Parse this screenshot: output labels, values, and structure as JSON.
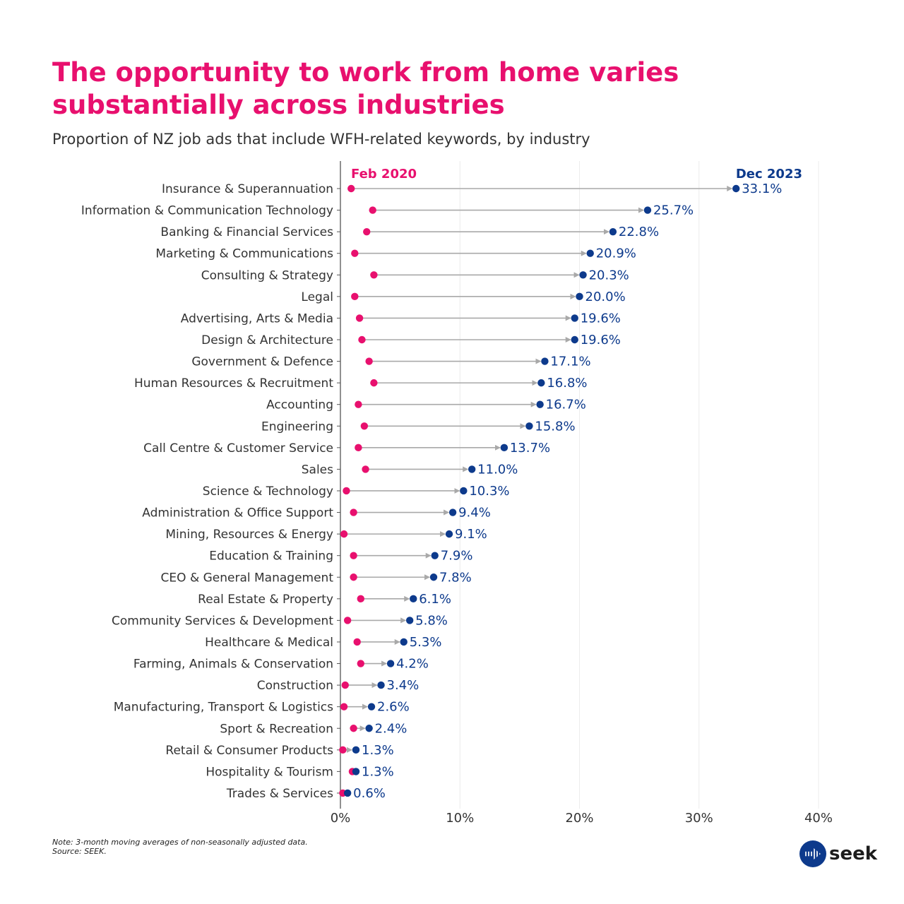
{
  "title": "The opportunity to work from home varies substantially across industries",
  "subtitle": "Proportion of NZ job ads that include WFH-related keywords, by industry",
  "note": "Note: 3-month moving averages of non-seasonally adjusted data.",
  "source": "Source: SEEK.",
  "logo": "seek",
  "colors": {
    "title": "#e8106e",
    "feb2020": "#e8106e",
    "dec2023": "#0d3a8c",
    "arrow": "#a9a9a9",
    "grid": "#ececec"
  },
  "chart_data": {
    "type": "dumbbell",
    "xlim": [
      0,
      40
    ],
    "x_ticks": [
      "0%",
      "10%",
      "20%",
      "30%",
      "40%"
    ],
    "grid": true,
    "series_labels": {
      "start": "Feb 2020",
      "end": "Dec 2023"
    },
    "categories": [
      "Insurance & Superannuation",
      "Information & Communication Technology",
      "Banking & Financial Services",
      "Marketing & Communications",
      "Consulting & Strategy",
      "Legal",
      "Advertising, Arts & Media",
      "Design & Architecture",
      "Government & Defence",
      "Human Resources & Recruitment",
      "Accounting",
      "Engineering",
      "Call Centre & Customer Service",
      "Sales",
      "Science & Technology",
      "Administration & Office Support",
      "Mining, Resources & Energy",
      "Education & Training",
      "CEO & General Management",
      "Real Estate & Property",
      "Community Services & Development",
      "Healthcare & Medical",
      "Farming, Animals & Conservation",
      "Construction",
      "Manufacturing, Transport & Logistics",
      "Sport & Recreation",
      "Retail & Consumer Products",
      "Hospitality & Tourism",
      "Trades & Services"
    ],
    "feb2020": [
      0.9,
      2.7,
      2.2,
      1.2,
      2.8,
      1.2,
      1.6,
      1.8,
      2.4,
      2.8,
      1.5,
      2.0,
      1.5,
      2.1,
      0.5,
      1.1,
      0.3,
      1.1,
      1.1,
      1.7,
      0.6,
      1.4,
      1.7,
      0.4,
      0.3,
      1.1,
      0.2,
      1.0,
      0.2
    ],
    "dec2023": [
      33.1,
      25.7,
      22.8,
      20.9,
      20.3,
      20.0,
      19.6,
      19.6,
      17.1,
      16.8,
      16.7,
      15.8,
      13.7,
      11.0,
      10.3,
      9.4,
      9.1,
      7.9,
      7.8,
      6.1,
      5.8,
      5.3,
      4.2,
      3.4,
      2.6,
      2.4,
      1.3,
      1.3,
      0.6
    ],
    "dec2023_labels": [
      "33.1%",
      "25.7%",
      "22.8%",
      "20.9%",
      "20.3%",
      "20.0%",
      "19.6%",
      "19.6%",
      "17.1%",
      "16.8%",
      "16.7%",
      "15.8%",
      "13.7%",
      "11.0%",
      "10.3%",
      "9.4%",
      "9.1%",
      "7.9%",
      "7.8%",
      "6.1%",
      "5.8%",
      "5.3%",
      "4.2%",
      "3.4%",
      "2.6%",
      "2.4%",
      "1.3%",
      "1.3%",
      "0.6%"
    ]
  }
}
